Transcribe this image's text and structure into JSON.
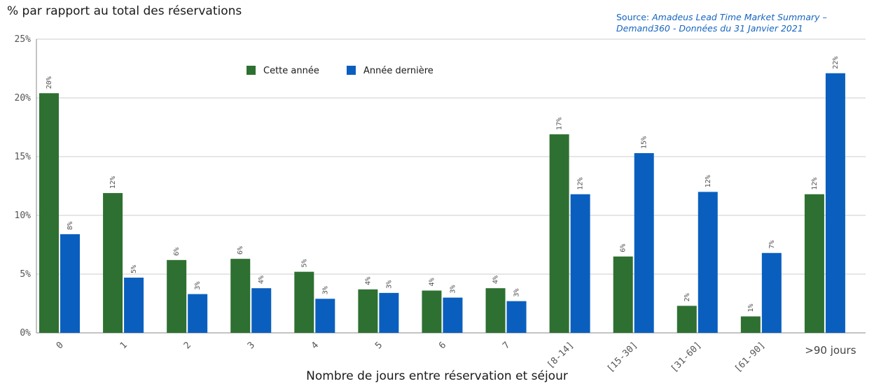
{
  "header": {
    "ylabel": "% par rapport au total des réservations",
    "source_prefix": "Source: ",
    "source_line1": "Amadeus Lead Time Market Summary –",
    "source_line2": "Demand360 - Données du 31 Janvier 2021"
  },
  "xlabel": "Nombre de jours entre réservation et séjour",
  "colors": {
    "series1": "#2e7031",
    "series2": "#0a5fbe",
    "grid": "#cccccc",
    "axis": "#888888"
  },
  "chart_data": {
    "type": "bar",
    "categories": [
      "0",
      "1",
      "2",
      "3",
      "4",
      "5",
      "6",
      "7",
      "[8-14]",
      "[15-30]",
      "[31-60]",
      "[61-90]",
      ">90 jours"
    ],
    "series": [
      {
        "name": "Cette année",
        "values": [
          20.4,
          11.9,
          6.2,
          6.3,
          5.2,
          3.7,
          3.6,
          3.8,
          16.9,
          6.5,
          2.3,
          1.4,
          11.8
        ],
        "labels": [
          "20%",
          "12%",
          "6%",
          "6%",
          "5%",
          "4%",
          "4%",
          "4%",
          "17%",
          "6%",
          "2%",
          "1%",
          "12%"
        ]
      },
      {
        "name": "Année dernière",
        "values": [
          8.4,
          4.7,
          3.3,
          3.8,
          2.9,
          3.4,
          3.0,
          2.7,
          11.8,
          15.3,
          12.0,
          6.8,
          22.1
        ],
        "labels": [
          "8%",
          "5%",
          "3%",
          "4%",
          "3%",
          "3%",
          "3%",
          "3%",
          "12%",
          "15%",
          "12%",
          "7%",
          "22%"
        ]
      }
    ],
    "yticks": [
      "0%",
      "5%",
      "10%",
      "15%",
      "20%",
      "25%"
    ],
    "ylim": [
      0,
      25
    ],
    "grid": true,
    "legend_position": "top-left"
  }
}
